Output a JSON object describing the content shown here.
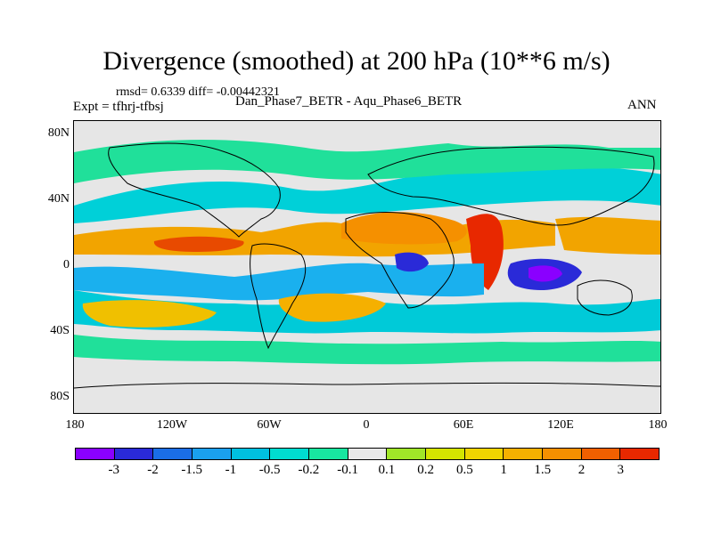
{
  "title": "Divergence (smoothed) at 200 hPa (10**6 m/s)",
  "stats": "rmsd= 0.6339 diff= -0.00442321",
  "experiment": "Expt = tfhrj-tfbsj",
  "case_label": "Dan_Phase7_BETR - Aqu_Phase6_BETR",
  "season": "ANN",
  "lat_labels": [
    "80N",
    "40N",
    "0",
    "40S",
    "80S"
  ],
  "lon_labels": [
    "180",
    "120W",
    "60W",
    "0",
    "60E",
    "120E",
    "180"
  ],
  "colorbar": {
    "colors": [
      "#8a00ff",
      "#2a2ad8",
      "#1a6ee6",
      "#1aa0ee",
      "#00c0e0",
      "#00dcd0",
      "#18e6a0",
      "#e8e8e8",
      "#a0e628",
      "#d4e400",
      "#f0d400",
      "#f5b000",
      "#f59000",
      "#f06000",
      "#e82800"
    ],
    "labels": [
      "-3",
      "-2",
      "-1.5",
      "-1",
      "-0.5",
      "-0.2",
      "-0.1",
      "0.1",
      "0.2",
      "0.5",
      "1",
      "1.5",
      "2",
      "3"
    ]
  },
  "chart_data": {
    "type": "filled-contour-map",
    "variable": "Divergence (smoothed)",
    "level": "200 hPa",
    "units": "10**6 m/s",
    "projection": "cylindrical equidistant",
    "lon_range": [
      -180,
      180
    ],
    "lat_range": [
      -90,
      90
    ],
    "contour_levels": [
      -3,
      -2,
      -1.5,
      -1,
      -0.5,
      -0.2,
      -0.1,
      0.1,
      0.2,
      0.5,
      1,
      1.5,
      2,
      3
    ],
    "rmsd": 0.6339,
    "mean_difference": -0.00442321
  }
}
